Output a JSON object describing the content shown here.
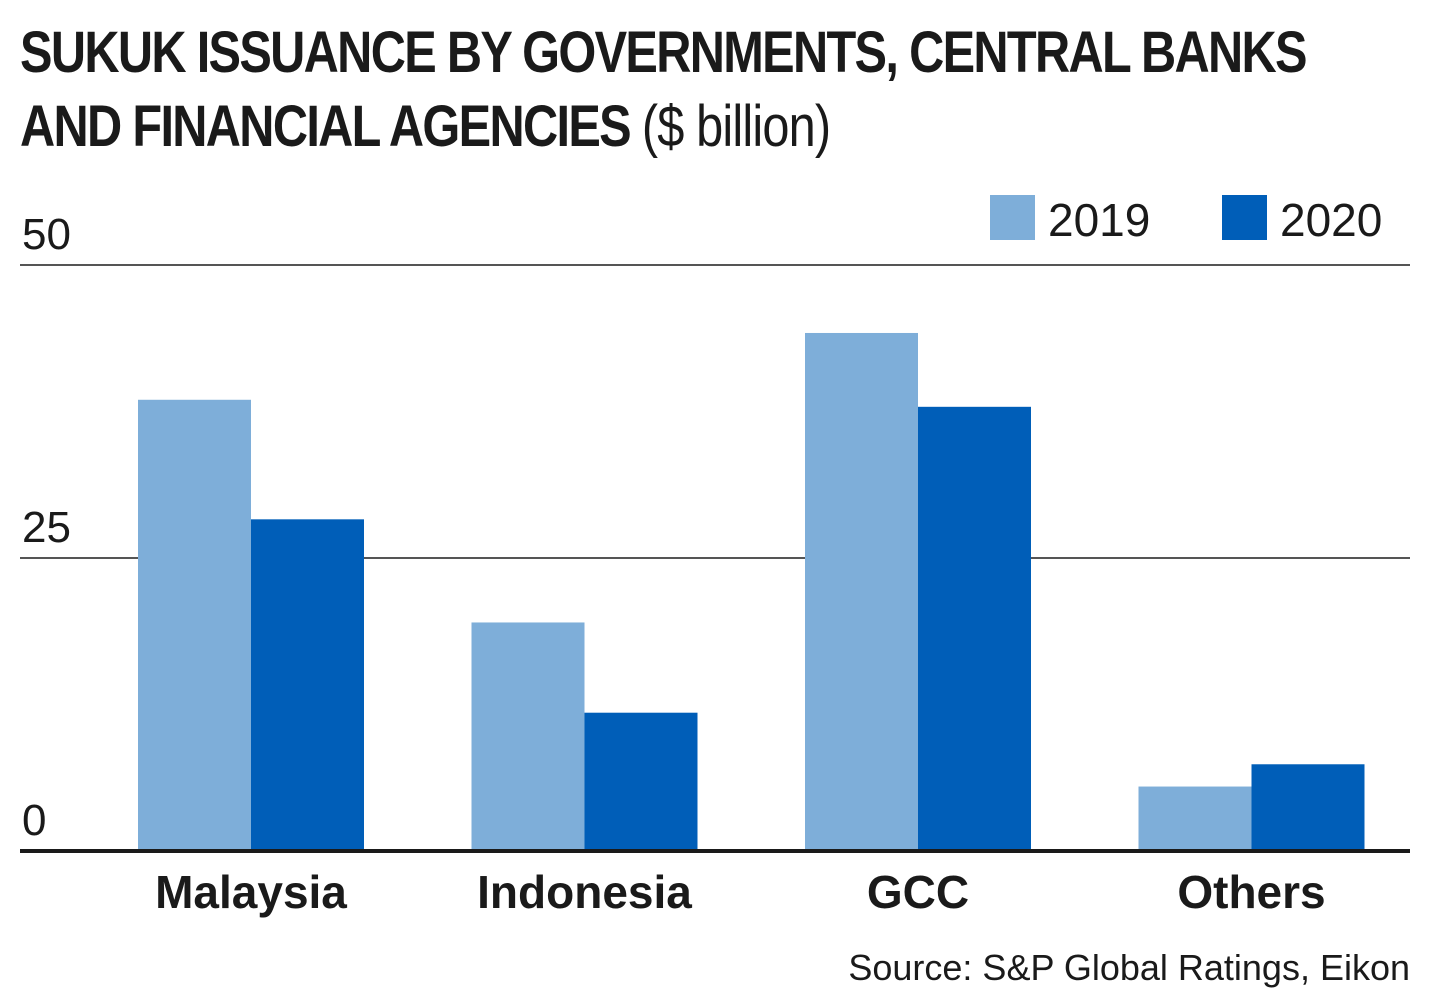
{
  "title": {
    "line1": "SUKUK ISSUANCE BY GOVERNMENTS, CENTRAL BANKS",
    "line2": "AND FINANCIAL AGENCIES",
    "unit": "($ billion)"
  },
  "source": "Source: S&P Global Ratings, Eikon",
  "colors": {
    "series_2019": "#7eaed9",
    "series_2020": "#005eb8",
    "axis": "#1a1a1a",
    "grid": "#555555"
  },
  "chart_data": {
    "type": "bar",
    "categories": [
      "Malaysia",
      "Indonesia",
      "GCC",
      "Others"
    ],
    "series": [
      {
        "name": "2019",
        "values": [
          38.5,
          19.5,
          44.2,
          5.5
        ]
      },
      {
        "name": "2020",
        "values": [
          28.3,
          11.8,
          37.9,
          7.4
        ]
      }
    ],
    "ylim": [
      0,
      50
    ],
    "yticks": [
      "0",
      "25",
      "50"
    ],
    "grid": true,
    "legend": "top-right"
  }
}
